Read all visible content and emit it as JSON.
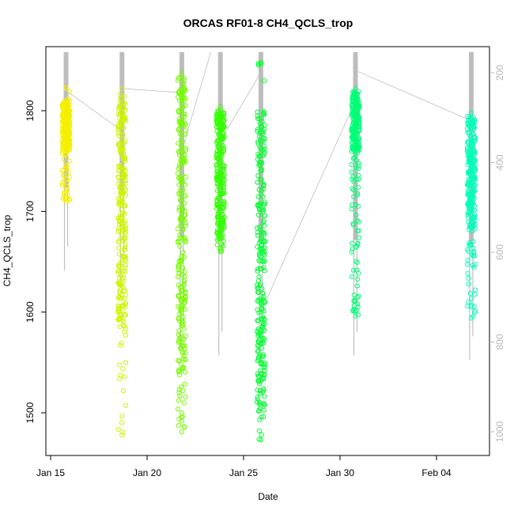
{
  "chart_data": {
    "type": "scatter",
    "title": "ORCAS RF01-8 CH4_QCLS_trop",
    "xlabel": "Date",
    "ylabel": "CH4_QCLS_trop",
    "x_ticks": [
      "Jan 15",
      "Jan 20",
      "Jan 25",
      "Jan 30",
      "Feb 04"
    ],
    "y_ticks": [
      "1500",
      "1600",
      "1700",
      "1800"
    ],
    "y2_ticks": [
      "200",
      "400",
      "600",
      "800",
      "1000"
    ],
    "ylim": [
      1460,
      1858
    ],
    "y2lim": [
      1040,
      154
    ],
    "grid": false,
    "colors": {
      "flight1": "#f5f000",
      "flight2": "#ccf500",
      "flight3": "#77fb00",
      "flight4": "#33ff00",
      "flight5": "#05ff33",
      "flight6": "#00ff77",
      "flight7": "#00ffb8",
      "pressure_trace": "#c0c0c0",
      "pressure_track": "#b0b0b0"
    },
    "series": [
      {
        "date": "2016-01-15.8",
        "x": 15.8,
        "ymin": 1710,
        "ymax": 1823,
        "dense": [
          1760,
          1810
        ],
        "color_key": "flight1"
      },
      {
        "date": "2016-01-18.7",
        "x": 18.7,
        "ymin": 1478,
        "ymax": 1822,
        "dense": [
          1590,
          1815
        ],
        "color_key": "flight2"
      },
      {
        "date": "2016-01-21.8",
        "x": 21.8,
        "ymin": 1481,
        "ymax": 1838,
        "dense": [
          1540,
          1830
        ],
        "color_key": "flight3"
      },
      {
        "date": "2016-01-23.8",
        "x": 23.8,
        "ymin": 1660,
        "ymax": 1804,
        "dense": [
          1670,
          1800
        ],
        "color_key": "flight4"
      },
      {
        "date": "2016-01-25.9",
        "x": 25.9,
        "ymin": 1473,
        "ymax": 1848,
        "dense": [
          1500,
          1800
        ],
        "color_key": "flight5"
      },
      {
        "date": "2016-01-30.8",
        "x": 30.8,
        "ymin": 1596,
        "ymax": 1822,
        "dense": [
          1760,
          1820
        ],
        "color_key": "flight6"
      },
      {
        "date": "2016-02-05.8",
        "x": 36.8,
        "ymin": 1594,
        "ymax": 1798,
        "dense": [
          1680,
          1795
        ],
        "color_key": "flight7"
      }
    ],
    "pressure_tracks": [
      {
        "x": 15.8,
        "p_top": 154,
        "p_bottom": 640
      },
      {
        "x": 18.7,
        "p_top": 154,
        "p_bottom": 660
      },
      {
        "x": 21.8,
        "p_top": 154,
        "p_bottom": 820
      },
      {
        "x": 23.8,
        "p_top": 154,
        "p_bottom": 830
      },
      {
        "x": 25.9,
        "p_top": 154,
        "p_bottom": 830
      },
      {
        "x": 30.8,
        "p_top": 154,
        "p_bottom": 830
      },
      {
        "x": 36.8,
        "p_top": 154,
        "p_bottom": 840
      }
    ]
  }
}
